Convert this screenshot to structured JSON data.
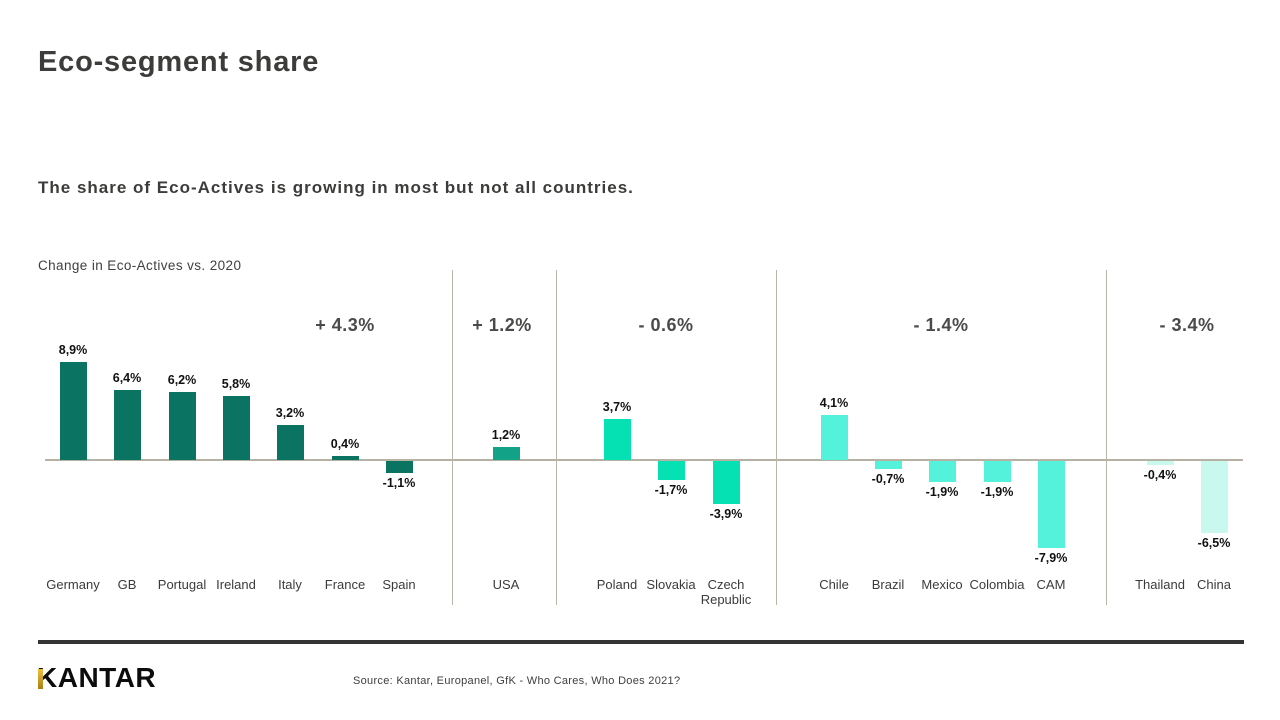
{
  "slide": {
    "title": "Eco-segment share",
    "subtitle": "The share of Eco-Actives is growing in most but not all countries.",
    "chart_label": "Change in Eco-Actives vs. 2020",
    "footer": {
      "logo_text": "KANTAR",
      "source": "Source: Kantar, Europanel, GfK - Who Cares, Who Does 2021?"
    }
  },
  "colors": {
    "europe": "#0a7361",
    "usa": "#12a287",
    "eastern_europe": "#06e1b3",
    "latam": "#54f2da",
    "asia": "#c9f8ee",
    "axis_line": "#b5b2a4",
    "footer_rule": "#343434",
    "logo_gold": "#c9971c",
    "text_dark": "#3c3c3b"
  },
  "chart_data": {
    "type": "bar",
    "title": "Change in Eco-Actives vs. 2020",
    "unit": "%",
    "ylim": [
      -9,
      10
    ],
    "grid": false,
    "baseline": 0,
    "groups": [
      {
        "annotation": "+ 4.3%",
        "region_average": 4.3,
        "color_key": "europe",
        "countries": [
          {
            "label": "Germany",
            "value": 8.9,
            "value_label": "8,9%"
          },
          {
            "label": "GB",
            "value": 6.4,
            "value_label": "6,4%"
          },
          {
            "label": "Portugal",
            "value": 6.2,
            "value_label": "6,2%"
          },
          {
            "label": "Ireland",
            "value": 5.8,
            "value_label": "5,8%"
          },
          {
            "label": "Italy",
            "value": 3.2,
            "value_label": "3,2%"
          },
          {
            "label": "France",
            "value": 0.4,
            "value_label": "0,4%"
          },
          {
            "label": "Spain",
            "value": -1.1,
            "value_label": "-1,1%"
          }
        ]
      },
      {
        "annotation": "+ 1.2%",
        "region_average": 1.2,
        "color_key": "usa",
        "countries": [
          {
            "label": "USA",
            "value": 1.2,
            "value_label": "1,2%"
          }
        ]
      },
      {
        "annotation": "- 0.6%",
        "region_average": -0.6,
        "color_key": "eastern_europe",
        "countries": [
          {
            "label": "Poland",
            "value": 3.7,
            "value_label": "3,7%"
          },
          {
            "label": "Slovakia",
            "value": -1.7,
            "value_label": "-1,7%"
          },
          {
            "label": "Czech Republic",
            "value": -3.9,
            "value_label": "-3,9%"
          }
        ]
      },
      {
        "annotation": "- 1.4%",
        "region_average": -1.4,
        "color_key": "latam",
        "countries": [
          {
            "label": "Chile",
            "value": 4.1,
            "value_label": "4,1%"
          },
          {
            "label": "Brazil",
            "value": -0.7,
            "value_label": "-0,7%"
          },
          {
            "label": "Mexico",
            "value": -1.9,
            "value_label": "-1,9%"
          },
          {
            "label": "Colombia",
            "value": -1.9,
            "value_label": "-1,9%"
          },
          {
            "label": "CAM",
            "value": -7.9,
            "value_label": "-7,9%"
          }
        ]
      },
      {
        "annotation": "- 3.4%",
        "region_average": -3.4,
        "color_key": "asia",
        "countries": [
          {
            "label": "Thailand",
            "value": -0.4,
            "value_label": "-0,4%"
          },
          {
            "label": "China",
            "value": -6.5,
            "value_label": "-6,5%"
          }
        ]
      }
    ]
  }
}
